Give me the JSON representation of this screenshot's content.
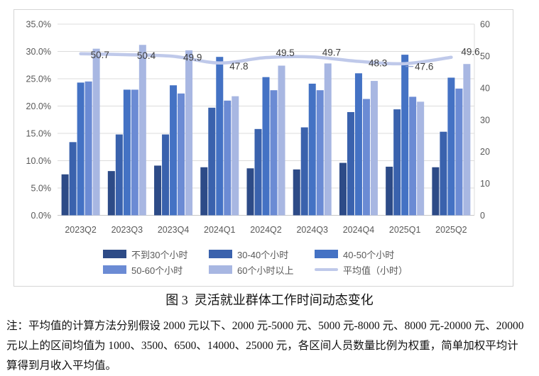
{
  "figure": {
    "caption": "图 3  灵活就业群体工作时间动态变化",
    "note_lines": [
      "注：平均值的计算方法分别假设 2000 元以下、2000 元-5000 元、5000 元-8000 元、8000 元-20000 元、20000",
      "元以上的区间均值为 1000、3500、6500、14000、25000 元，各区间人员数量比例为权重，简单加权平均计",
      "算得到月收入平均值。"
    ]
  },
  "chart_data": {
    "type": "bar",
    "subtype": "clustered-bars-with-line-combo",
    "categories": [
      "2023Q2",
      "2023Q3",
      "2023Q4",
      "2024Q1",
      "2024Q2",
      "2024Q3",
      "2024Q4",
      "2025Q1",
      "2025Q2"
    ],
    "series": [
      {
        "name": "不到30个小时",
        "color": "#2d4b87",
        "values": [
          7.5,
          8.1,
          9.1,
          8.8,
          8.6,
          8.4,
          9.6,
          8.9,
          8.8
        ]
      },
      {
        "name": "30-40个小时",
        "color": "#3a62ad",
        "values": [
          13.4,
          14.8,
          14.8,
          19.7,
          15.8,
          16.1,
          18.9,
          19.4,
          15.3
        ]
      },
      {
        "name": "40-50个小时",
        "color": "#4472c4",
        "values": [
          24.3,
          23.0,
          23.8,
          29.0,
          25.3,
          24.1,
          26.0,
          29.4,
          25.2
        ]
      },
      {
        "name": "50-60个小时",
        "color": "#6b8bd4",
        "values": [
          24.5,
          23.0,
          22.3,
          21.0,
          22.9,
          22.9,
          21.3,
          21.7,
          23.2
        ]
      },
      {
        "name": "60个小时以上",
        "color": "#a8b7e2",
        "values": [
          30.5,
          31.2,
          30.2,
          21.8,
          27.4,
          27.8,
          24.6,
          20.8,
          27.7
        ]
      }
    ],
    "line_series": {
      "name": "平均值（小时）",
      "color": "#bfc9ea",
      "axis": "right",
      "values": [
        50.7,
        50.4,
        49.9,
        47.8,
        49.5,
        49.7,
        48.3,
        47.6,
        49.6
      ],
      "labels": [
        "50.7",
        "50.4",
        "49.9",
        "47.8",
        "49.5",
        "49.7",
        "48.3",
        "47.6",
        "49.6"
      ]
    },
    "left_axis": {
      "min": 0,
      "max": 35,
      "step": 5,
      "tick_labels": [
        "0.0%",
        "5.0%",
        "10.0%",
        "15.0%",
        "20.0%",
        "25.0%",
        "30.0%",
        "35.0%"
      ]
    },
    "right_axis": {
      "min": 0,
      "max": 60,
      "step": 10,
      "tick_labels": [
        "0",
        "10",
        "20",
        "30",
        "40",
        "50",
        "60"
      ]
    },
    "legend_position": "bottom",
    "grid": true,
    "colors": {
      "gridline": "#dcdcdc",
      "baseline": "#c6c6c6",
      "axis_text": "#595959",
      "data_label_text": "#3d3d3d",
      "frame_border": "#d5d5d5"
    }
  }
}
